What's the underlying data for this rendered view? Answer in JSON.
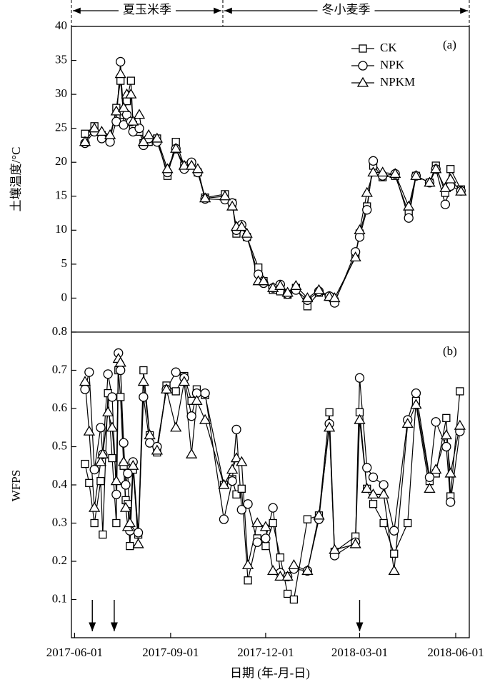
{
  "chart_data": [
    {
      "type": "line",
      "title": "(a)",
      "ylabel": "土壤温度/°C",
      "seasons": [
        {
          "label": "夏玉米季",
          "x": [
            "2017-05-29",
            "2017-10-21"
          ]
        },
        {
          "label": "冬小麦季",
          "x": [
            "2017-10-21",
            "2018-06-14"
          ]
        }
      ],
      "xlim": [
        "2017-05-29",
        "2018-06-14"
      ],
      "ylim": [
        -5,
        40
      ],
      "yticks": [
        0,
        5,
        10,
        15,
        20,
        25,
        30,
        35,
        40
      ],
      "legend": "upper right",
      "x": [
        "2017-06-11",
        "2017-06-20",
        "2017-06-27",
        "2017-07-05",
        "2017-07-11",
        "2017-07-15",
        "2017-07-18",
        "2017-07-21",
        "2017-07-25",
        "2017-07-27",
        "2017-08-02",
        "2017-08-06",
        "2017-08-11",
        "2017-08-19",
        "2017-08-29",
        "2017-09-06",
        "2017-09-14",
        "2017-09-21",
        "2017-09-27",
        "2017-10-04",
        "2017-10-23",
        "2017-10-30",
        "2017-11-03",
        "2017-11-08",
        "2017-11-13",
        "2017-11-24",
        "2017-11-29",
        "2017-12-08",
        "2017-12-15",
        "2017-12-22",
        "2017-12-30",
        "2018-01-10",
        "2018-01-21",
        "2018-01-31",
        "2018-02-05",
        "2018-02-25",
        "2018-03-01",
        "2018-03-08",
        "2018-03-14",
        "2018-03-23",
        "2018-04-04",
        "2018-04-17",
        "2018-04-24",
        "2018-05-07",
        "2018-05-13",
        "2018-05-22",
        "2018-05-27",
        "2018-06-06"
      ],
      "series": [
        {
          "name": "CK",
          "marker": "square",
          "color": "#000",
          "values": [
            24.2,
            25.3,
            24,
            23.2,
            28,
            32,
            27,
            29,
            32,
            25.5,
            24.5,
            22.8,
            23,
            23.5,
            18,
            23,
            19.5,
            19.5,
            18.5,
            14.8,
            15.3,
            14,
            9.5,
            10.5,
            9,
            4.5,
            2.5,
            1.2,
            1,
            0.5,
            1.5,
            -1.2,
            0.8,
            0.2,
            -0.5,
            6.2,
            9.5,
            13.5,
            19.5,
            17.8,
            18,
            12.5,
            18,
            17,
            19.5,
            15.5,
            19,
            16
          ]
        },
        {
          "name": "NPK",
          "marker": "circle",
          "color": "#000",
          "values": [
            22.8,
            24.5,
            23.5,
            23,
            26,
            34.8,
            25.5,
            27,
            26,
            24.5,
            25,
            22.5,
            23.5,
            23,
            18.5,
            22,
            19,
            20,
            18.5,
            14.6,
            14.5,
            14,
            10,
            10.8,
            9,
            3.5,
            2.2,
            1.5,
            2,
            0.6,
            1.2,
            -0.3,
            1,
            0.3,
            -0.7,
            6.8,
            9,
            13,
            20.2,
            18,
            18.3,
            11.8,
            18,
            17,
            19,
            13.8,
            16.5,
            15.8
          ]
        },
        {
          "name": "NPKM",
          "marker": "triangle",
          "color": "#000",
          "values": [
            23,
            25,
            24.5,
            24,
            27.5,
            33,
            28,
            30,
            30,
            26,
            27,
            23,
            24,
            23.5,
            19,
            22,
            19.5,
            19.5,
            19,
            14.7,
            15,
            13.5,
            10.5,
            10.5,
            9.5,
            2.5,
            2.5,
            1.5,
            1.8,
            0.8,
            1.8,
            0,
            1.2,
            0.2,
            0,
            6,
            10,
            15.5,
            18.5,
            18.5,
            18.3,
            13.5,
            18,
            17,
            19,
            16.2,
            17.5,
            15.7
          ]
        }
      ]
    },
    {
      "type": "line",
      "title": "(b)",
      "ylabel": "WFPS",
      "xlabel": "日期 (年-月-日)",
      "arrows": [
        "2017-06-18",
        "2017-07-09",
        "2018-03-01"
      ],
      "xlim": [
        "2017-05-29",
        "2018-06-14"
      ],
      "xticks": [
        "2017-06-01",
        "2017-09-01",
        "2017-12-01",
        "2018-03-01",
        "2018-06-01"
      ],
      "ylim": [
        0,
        0.8
      ],
      "yticks": [
        0.1,
        0.2,
        0.3,
        0.4,
        0.5,
        0.6,
        0.7,
        0.8
      ],
      "x": [
        "2017-06-11",
        "2017-06-15",
        "2017-06-20",
        "2017-06-26",
        "2017-06-28",
        "2017-07-03",
        "2017-07-07",
        "2017-07-11",
        "2017-07-13",
        "2017-07-15",
        "2017-07-18",
        "2017-07-20",
        "2017-07-22",
        "2017-07-24",
        "2017-07-27",
        "2017-08-01",
        "2017-08-06",
        "2017-08-12",
        "2017-08-19",
        "2017-08-28",
        "2017-09-06",
        "2017-09-14",
        "2017-09-21",
        "2017-09-26",
        "2017-10-04",
        "2017-10-22",
        "2017-10-30",
        "2017-11-03",
        "2017-11-08",
        "2017-11-14",
        "2017-11-23",
        "2017-12-01",
        "2017-12-08",
        "2017-12-15",
        "2017-12-22",
        "2017-12-28",
        "2018-01-10",
        "2018-01-21",
        "2018-01-31",
        "2018-02-05",
        "2018-02-25",
        "2018-03-01",
        "2018-03-08",
        "2018-03-14",
        "2018-03-24",
        "2018-04-03",
        "2018-04-16",
        "2018-04-24",
        "2018-05-07",
        "2018-05-13",
        "2018-05-23",
        "2018-05-27",
        "2018-06-05"
      ],
      "series": [
        {
          "marker": "square",
          "color": "#000",
          "values": [
            0.455,
            0.405,
            0.3,
            0.41,
            0.27,
            0.64,
            0.47,
            0.3,
            0.7,
            0.63,
            0.45,
            0.36,
            0.35,
            0.24,
            0.44,
            0.27,
            0.7,
            0.53,
            0.485,
            0.66,
            0.645,
            0.685,
            0.62,
            0.65,
            0.635,
            0.4,
            0.415,
            0.375,
            0.39,
            0.15,
            0.26,
            0.24,
            0.3,
            0.21,
            0.115,
            0.1,
            0.31,
            0.32,
            0.59,
            0.225,
            0.265,
            0.59,
            0.39,
            0.35,
            0.3,
            0.22,
            0.3,
            0.62,
            0.41,
            0.43,
            0.575,
            0.37,
            0.645
          ]
        },
        {
          "marker": "circle",
          "color": "#000",
          "values": [
            0.65,
            0.695,
            0.44,
            0.55,
            0.48,
            0.69,
            0.63,
            0.375,
            0.745,
            0.7,
            0.51,
            0.4,
            0.43,
            0.28,
            0.46,
            0.275,
            0.63,
            0.51,
            0.5,
            0.65,
            0.695,
            0.68,
            0.58,
            0.64,
            0.64,
            0.31,
            0.41,
            0.545,
            0.335,
            0.35,
            0.25,
            0.26,
            0.34,
            0.17,
            0.16,
            0.18,
            0.175,
            0.31,
            0.56,
            0.215,
            0.25,
            0.68,
            0.445,
            0.42,
            0.4,
            0.28,
            0.57,
            0.64,
            0.42,
            0.565,
            0.5,
            0.355,
            0.54
          ]
        },
        {
          "marker": "triangle",
          "color": "#000",
          "values": [
            0.67,
            0.54,
            0.34,
            0.46,
            0.48,
            0.59,
            0.55,
            0.41,
            0.73,
            0.72,
            0.46,
            0.34,
            0.29,
            0.3,
            0.45,
            0.245,
            0.67,
            0.53,
            0.49,
            0.65,
            0.55,
            0.67,
            0.48,
            0.62,
            0.57,
            0.4,
            0.44,
            0.47,
            0.46,
            0.19,
            0.3,
            0.29,
            0.175,
            0.16,
            0.16,
            0.19,
            0.175,
            0.32,
            0.55,
            0.23,
            0.245,
            0.57,
            0.39,
            0.375,
            0.375,
            0.175,
            0.56,
            0.61,
            0.39,
            0.44,
            0.53,
            0.43,
            0.555
          ]
        }
      ]
    }
  ]
}
